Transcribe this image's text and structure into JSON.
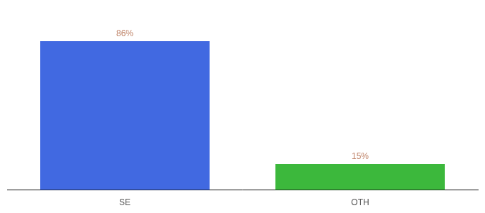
{
  "chart_data": {
    "type": "bar",
    "categories": [
      "SE",
      "OTH"
    ],
    "values": [
      86,
      15
    ],
    "value_labels": [
      "86%",
      "15%"
    ],
    "colors": [
      "#4169e1",
      "#3cb83c"
    ],
    "ylim": [
      0,
      100
    ],
    "data_labels": true,
    "tick_labels": "x",
    "grid": false
  }
}
